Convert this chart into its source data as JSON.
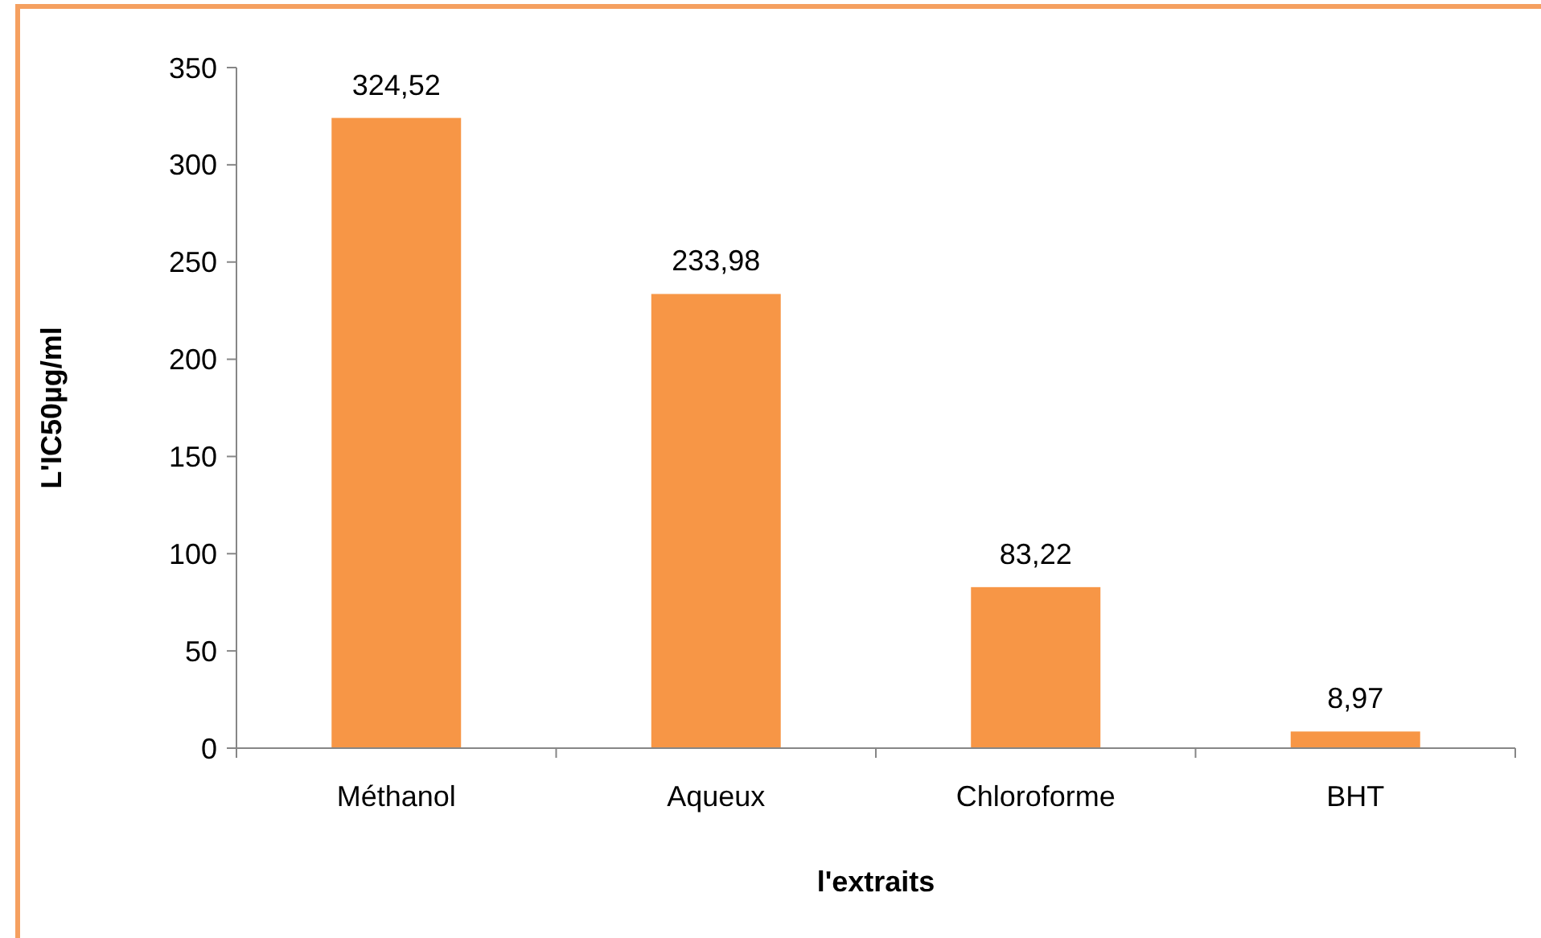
{
  "chart_data": {
    "type": "bar",
    "xlabel": "l'extraits",
    "ylabel": "L'IC50µg/ml",
    "categories": [
      "Méthanol",
      "Aqueux",
      "Chloroforme",
      "BHT"
    ],
    "values": [
      324.52,
      233.98,
      83.22,
      8.97
    ],
    "value_labels": [
      "324,52",
      "233,98",
      "83,22",
      "8,97"
    ],
    "color": "#f79646",
    "ylim": [
      0,
      350
    ],
    "yticks": [
      0,
      50,
      100,
      150,
      200,
      250,
      300,
      350
    ],
    "grid": false
  }
}
